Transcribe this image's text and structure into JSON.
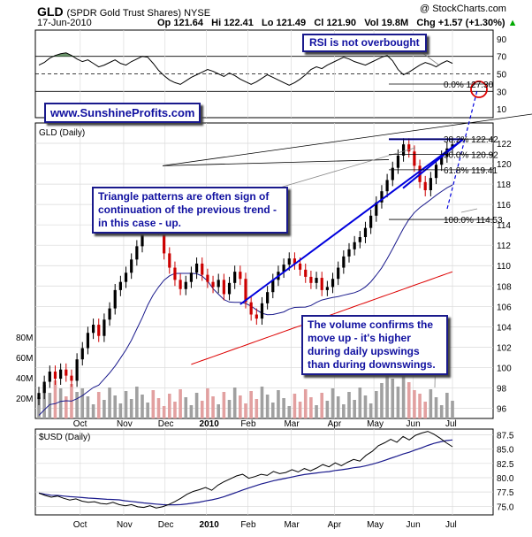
{
  "header": {
    "ticker": "GLD",
    "name": "(SPDR Gold Trust Shares) NYSE",
    "date": "17-Jun-2010",
    "watermark": "@ StockCharts.com",
    "op": "Op 121.64",
    "hi": "Hi 122.41",
    "lo": "Lo 121.49",
    "cl": "Cl 121.90",
    "vol": "Vol 19.8M",
    "chg": "Chg +1.57 (+1.30%)",
    "chg_arrow": "▲"
  },
  "annotations": {
    "rsi_note": "RSI is not overbought",
    "website": "www.SunshineProfits.com",
    "triangle_note": "Triangle patterns are often sign of continuation of the previous trend - in this case - up.",
    "volume_note": "The volume confirms the move up - it's higher during daily upswings than during downswings."
  },
  "colors": {
    "up": "#000000",
    "down": "#cc0000",
    "ma50": "#1a1a8c",
    "ma200": "#dd0000",
    "trend_blue": "#0000dd",
    "rsi_fill": "#5a8a5a",
    "annotation_text": "#1010a0",
    "volume_bar": "#a0a0a0"
  },
  "chart_data": [
    {
      "type": "line",
      "panel": "rsi",
      "y_ticks": [
        10,
        30,
        50,
        70,
        90
      ],
      "ylim": [
        0,
        100
      ],
      "reference_lines": [
        70,
        50,
        30
      ],
      "series": [
        {
          "values": [
            60,
            63,
            68,
            71,
            73,
            74,
            71,
            67,
            64,
            66,
            62,
            58,
            60,
            63,
            66,
            62,
            60,
            64,
            67,
            70,
            69,
            62,
            54,
            48,
            43,
            40,
            38,
            42,
            46,
            49,
            52,
            55,
            53,
            50,
            47,
            51,
            48,
            44,
            41,
            38,
            41,
            45,
            49,
            46,
            43,
            40,
            37,
            40,
            44,
            49,
            55,
            58,
            56,
            60,
            63,
            66,
            69,
            67,
            64,
            62,
            60,
            63,
            66,
            69,
            71,
            65,
            55,
            49,
            52,
            56,
            60,
            63,
            61,
            58,
            62,
            65,
            62
          ]
        }
      ]
    },
    {
      "type": "line",
      "panel": "price",
      "title": "GLD (Daily)",
      "x_ticks": [
        "Oct",
        "Nov",
        "Dec",
        "2010",
        "Feb",
        "Mar",
        "Apr",
        "May",
        "Jun",
        "Jul"
      ],
      "y_ticks": [
        96,
        98,
        100,
        102,
        104,
        106,
        108,
        110,
        112,
        114,
        116,
        118,
        120,
        122
      ],
      "ylim": [
        95,
        124
      ],
      "volume_ticks": [
        "20M",
        "40M",
        "60M",
        "80M"
      ],
      "series": [
        {
          "values": [
            97.5,
            98.6,
            99.6,
            98.9,
            99.8,
            99.2,
            98.7,
            100.8,
            101.9,
            103.4,
            104.2,
            103.1,
            104.7,
            105.8,
            107.6,
            108.4,
            109.3,
            110.6,
            111.9,
            114.2,
            116.9,
            115.1,
            113.6,
            111.2,
            109.8,
            108.6,
            107.7,
            108.4,
            109.3,
            110.2,
            109.1,
            108.4,
            107.9,
            108.6,
            107.2,
            108.3,
            109.4,
            108.7,
            106.4,
            105.2,
            104.8,
            106.3,
            107.4,
            108.6,
            109.4,
            110.1,
            110.7,
            110.2,
            109.6,
            108.9,
            108.3,
            108.8,
            107.6,
            107.9,
            108.7,
            109.8,
            110.9,
            111.6,
            112.3,
            112.8,
            113.7,
            114.9,
            116.2,
            117.3,
            118.4,
            119.6,
            120.8,
            121.9,
            121.2,
            119.8,
            118.2,
            117.4,
            118.6,
            119.9,
            120.7,
            121.5,
            121.9
          ]
        }
      ],
      "fibonacci": [
        {
          "label": "0.0%",
          "value": 127.3
        },
        {
          "label": "38.2%",
          "value": 122.42
        },
        {
          "label": "50.0%",
          "value": 120.92
        },
        {
          "label": "61.8%",
          "value": 119.41
        },
        {
          "label": "100.0%",
          "value": 114.53
        }
      ]
    },
    {
      "type": "line",
      "panel": "usd",
      "title": "$USD (Daily)",
      "x_ticks": [
        "Oct",
        "Nov",
        "Dec",
        "2010",
        "Feb",
        "Mar",
        "Apr",
        "May",
        "Jun",
        "Jul"
      ],
      "y_ticks": [
        75.0,
        77.5,
        80.0,
        82.5,
        85.0,
        87.5
      ],
      "ylim": [
        73.5,
        88.5
      ],
      "series": [
        {
          "values": [
            77.3,
            76.9,
            76.6,
            76.8,
            76.4,
            76.1,
            76.3,
            75.9,
            75.7,
            75.8,
            75.5,
            75.4,
            75.7,
            75.3,
            75.1,
            75.3,
            74.9,
            74.8,
            75.1,
            74.7,
            74.9,
            75.3,
            75.8,
            76.4,
            77.1,
            77.6,
            77.9,
            78.3,
            77.8,
            78.7,
            79.3,
            79.8,
            80.3,
            80.6,
            79.9,
            80.2,
            80.6,
            80.4,
            81.1,
            80.7,
            80.9,
            81.4,
            81.0,
            81.6,
            81.2,
            81.7,
            82.3,
            81.9,
            82.6,
            82.1,
            82.7,
            83.2,
            82.9,
            83.9,
            84.6,
            85.6,
            86.1,
            86.7,
            86.2,
            87.2,
            86.6,
            87.4,
            87.8,
            88.1,
            87.6,
            86.9,
            86.1,
            85.4
          ]
        }
      ]
    }
  ]
}
